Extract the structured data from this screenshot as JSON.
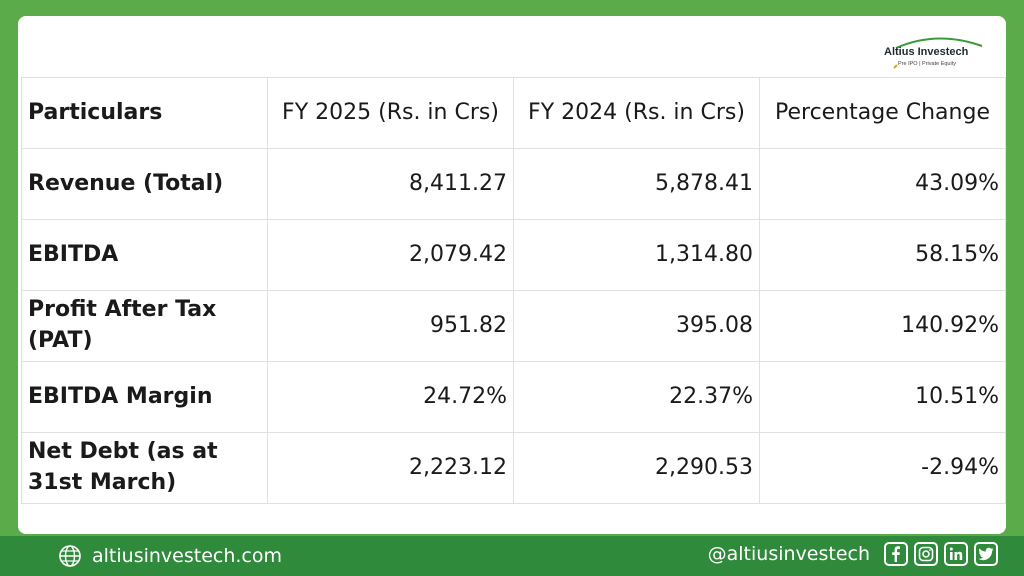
{
  "brand": {
    "name": "Altius Investech",
    "tagline": "Pre IPO | Private Equity",
    "accent": "#5bab4a",
    "footer_color": "#2f8a3c"
  },
  "table": {
    "headers": [
      "Particulars",
      "FY 2025 (Rs. in Crs)",
      "FY 2024 (Rs. in Crs)",
      "Percentage Change"
    ],
    "rows": [
      {
        "label": "Revenue (Total)",
        "fy2025": "8,411.27",
        "fy2024": "5,878.41",
        "change": "43.09%"
      },
      {
        "label": "EBITDA",
        "fy2025": "2,079.42",
        "fy2024": "1,314.80",
        "change": "58.15%"
      },
      {
        "label": "Profit After Tax (PAT)",
        "fy2025": "951.82",
        "fy2024": "395.08",
        "change": "140.92%"
      },
      {
        "label": "EBITDA Margin",
        "fy2025": "24.72%",
        "fy2024": "22.37%",
        "change": "10.51%"
      },
      {
        "label": "Net Debt (as at 31st March)",
        "fy2025": "2,223.12",
        "fy2024": "2,290.53",
        "change": "-2.94%"
      }
    ]
  },
  "footer": {
    "website": "altiusinvestech.com",
    "handle": "@altiusinvestech",
    "icons": [
      "globe-icon",
      "facebook-icon",
      "instagram-icon",
      "linkedin-icon",
      "twitter-icon"
    ]
  }
}
